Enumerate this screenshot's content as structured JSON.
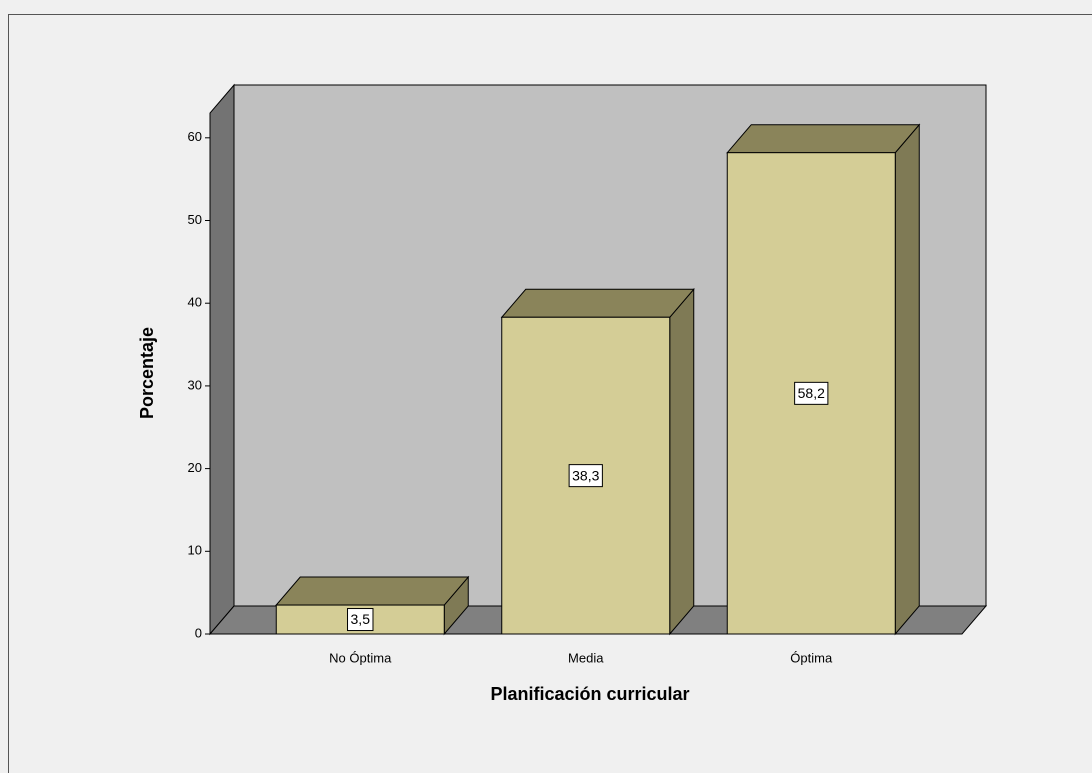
{
  "chart_data": {
    "type": "bar3d",
    "x_label": "Planificación curricular",
    "y_label": "Porcentaje",
    "categories": [
      "No Óptima",
      "Media",
      "Óptima"
    ],
    "values": [
      3.5,
      38.3,
      58.2
    ],
    "value_labels": [
      "3,5",
      "38,3",
      "58,2"
    ],
    "color": "#d4cd96",
    "ylim": [
      0,
      63
    ],
    "yticks": [
      0,
      10,
      20,
      30,
      40,
      50,
      60
    ],
    "grid": false
  }
}
